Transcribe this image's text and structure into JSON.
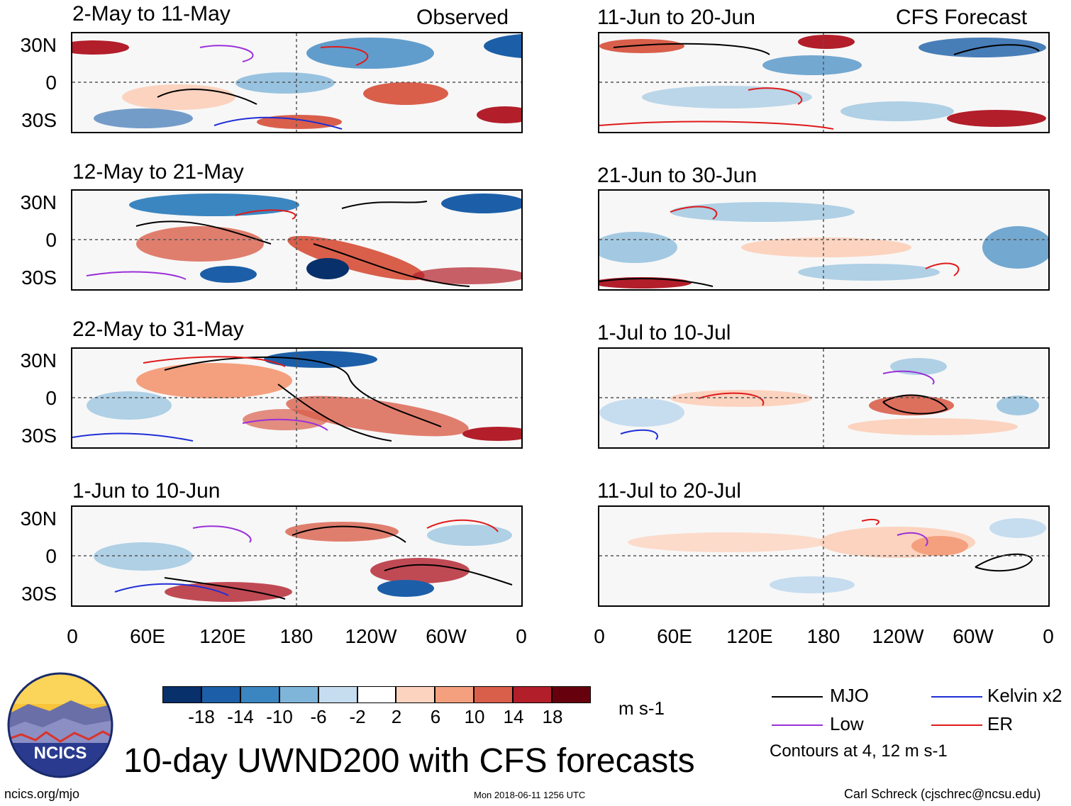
{
  "figure_title": "10-day UWND200 with CFS forecasts",
  "headers": {
    "observed": "Observed",
    "forecast": "CFS Forecast"
  },
  "panels": [
    {
      "id": "obs-1",
      "period": "2-May to 11-May",
      "column": "observed"
    },
    {
      "id": "obs-2",
      "period": "12-May to 21-May",
      "column": "observed"
    },
    {
      "id": "obs-3",
      "period": "22-May to 31-May",
      "column": "observed"
    },
    {
      "id": "obs-4",
      "period": "1-Jun to 10-Jun",
      "column": "observed"
    },
    {
      "id": "fc-1",
      "period": "11-Jun to 20-Jun",
      "column": "forecast"
    },
    {
      "id": "fc-2",
      "period": "21-Jun to 30-Jun",
      "column": "forecast"
    },
    {
      "id": "fc-3",
      "period": "1-Jul to 10-Jul",
      "column": "forecast"
    },
    {
      "id": "fc-4",
      "period": "11-Jul to 20-Jul",
      "column": "forecast"
    }
  ],
  "y_axis_labels": [
    "30N",
    "0",
    "30S"
  ],
  "x_axis_labels": [
    "0",
    "60E",
    "120E",
    "180",
    "120W",
    "60W",
    "0"
  ],
  "colorbar": {
    "unit": "m s-1",
    "labels": [
      "-18",
      "-14",
      "-10",
      "-6",
      "-2",
      "2",
      "6",
      "10",
      "14",
      "18"
    ],
    "colors": [
      "#08306b",
      "#1c5fa8",
      "#3b86c0",
      "#7fb5d9",
      "#c6dcef",
      "#ffffff",
      "#fcd3bf",
      "#f4a07e",
      "#d95f4b",
      "#b21e2a",
      "#67000d"
    ]
  },
  "legend": {
    "items": [
      {
        "label": "MJO",
        "color": "#000000"
      },
      {
        "label": "Kelvin x2",
        "color": "#1f2fd6"
      },
      {
        "label": "Low",
        "color": "#9b30d9"
      },
      {
        "label": "ER",
        "color": "#e01a1a"
      }
    ],
    "note": "Contours at 4, 12 m s-1"
  },
  "logo_text": "NCICS",
  "footer": {
    "url": "ncics.org/mjo",
    "timestamp": "Mon 2018-06-11 1256 UTC",
    "author": "Carl Schreck (cjschrec@ncsu.edu)"
  }
}
